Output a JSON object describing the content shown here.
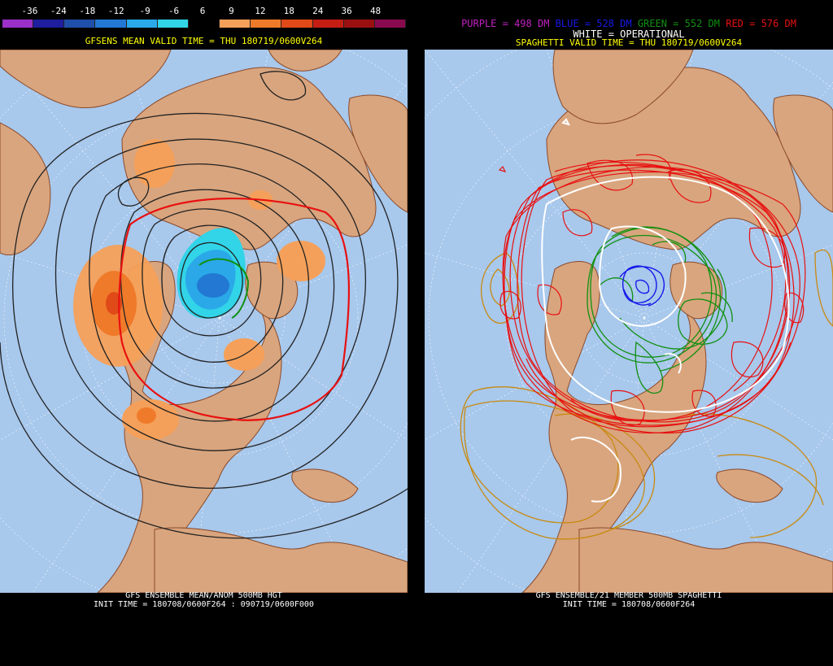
{
  "left": {
    "colorbar": {
      "labels": [
        "-36",
        "-24",
        "-18",
        "-12",
        "-9",
        "-6",
        "6",
        "9",
        "12",
        "18",
        "24",
        "36",
        "48"
      ],
      "colors": [
        "#9b30c8",
        "#1e1e9e",
        "#1f4fa8",
        "#2278d2",
        "#2aa8e8",
        "#32d4e8",
        "#000000",
        "#f5a05a",
        "#ef7a2a",
        "#e04a18",
        "#c41e14",
        "#9a1010",
        "#8a0a50"
      ]
    },
    "valid_time": "GFSENS MEAN VALID TIME = THU 180719/0600V264",
    "footer_line1": "GFS ENSEMBLE MEAN/ANOM 500MB HGT",
    "footer_line2": "INIT TIME = 180708/0600F264 : 090719/0600F000"
  },
  "right": {
    "legend": {
      "purple": "PURPLE = 498 DM",
      "blue": "BLUE = 528 DM",
      "green": "GREEN = 552 DM",
      "red": "RED = 576 DM",
      "white": "WHITE = OPERATIONAL"
    },
    "valid_time": "SPAGHETTI VALID TIME = THU 180719/0600V264",
    "footer_line1": "GFS ENSEMBLE/21 MEMBER 500MB SPAGHETTI",
    "footer_line2": "INIT TIME = 180708/0600F264"
  },
  "colors": {
    "ocean": "#a8c8ec",
    "land": "#d9a57e",
    "border": "#8b4a2a",
    "purple": "#c020c0",
    "blue": "#1818e8",
    "green": "#109010",
    "red": "#e81010",
    "gold": "#c88a10",
    "white": "#ffffff"
  }
}
